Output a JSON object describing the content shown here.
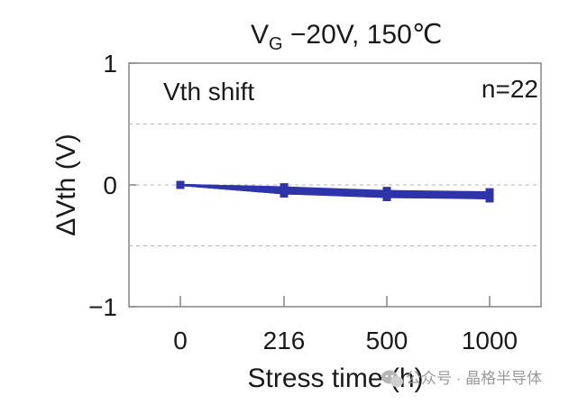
{
  "chart_data": {
    "type": "line",
    "title": {
      "main": "V",
      "subscript": "G",
      "rest": " −20V, 150℃"
    },
    "xlabel": "Stress time (h)",
    "ylabel": "ΔVth (V)",
    "categories": [
      "0",
      "216",
      "500",
      "1000"
    ],
    "ylim": [
      -1,
      1
    ],
    "yticks": [
      {
        "value": 1,
        "label": "1"
      },
      {
        "value": 0,
        "label": "0"
      },
      {
        "value": -1,
        "label": "−1"
      }
    ],
    "grid": true,
    "annotations": {
      "left": "Vth shift",
      "right": "n=22"
    },
    "series_color": "#2e35a8",
    "series": [
      {
        "name": "s1",
        "values": [
          0,
          -0.03,
          -0.06,
          -0.07
        ]
      },
      {
        "name": "s2",
        "values": [
          0,
          -0.04,
          -0.07,
          -0.08
        ]
      },
      {
        "name": "s3",
        "values": [
          0,
          -0.05,
          -0.08,
          -0.09
        ]
      },
      {
        "name": "s4",
        "values": [
          0,
          -0.06,
          -0.09,
          -0.1
        ]
      },
      {
        "name": "s5",
        "values": [
          0,
          -0.02,
          -0.05,
          -0.07
        ]
      },
      {
        "name": "s6",
        "values": [
          0,
          -0.05,
          -0.07,
          -0.08
        ]
      },
      {
        "name": "s7",
        "values": [
          0,
          -0.07,
          -0.09,
          -0.11
        ]
      },
      {
        "name": "s8",
        "values": [
          0,
          -0.04,
          -0.06,
          -0.09
        ]
      },
      {
        "name": "s9",
        "values": [
          0,
          -0.03,
          -0.07,
          -0.08
        ]
      },
      {
        "name": "s10",
        "values": [
          0,
          -0.06,
          -0.08,
          -0.1
        ]
      },
      {
        "name": "s11",
        "values": [
          0,
          -0.05,
          -0.09,
          -0.09
        ]
      },
      {
        "name": "s12",
        "values": [
          0,
          -0.04,
          -0.05,
          -0.06
        ]
      },
      {
        "name": "s13",
        "values": [
          0,
          -0.06,
          -0.07,
          -0.09
        ]
      },
      {
        "name": "s14",
        "values": [
          0,
          -0.07,
          -0.1,
          -0.11
        ]
      },
      {
        "name": "s15",
        "values": [
          0,
          -0.03,
          -0.06,
          -0.08
        ]
      },
      {
        "name": "s16",
        "values": [
          0,
          -0.05,
          -0.08,
          -0.1
        ]
      },
      {
        "name": "s17",
        "values": [
          0,
          -0.04,
          -0.07,
          -0.07
        ]
      },
      {
        "name": "s18",
        "values": [
          0,
          -0.06,
          -0.06,
          -0.08
        ]
      },
      {
        "name": "s19",
        "values": [
          0,
          -0.02,
          -0.06,
          -0.09
        ]
      },
      {
        "name": "s20",
        "values": [
          0,
          -0.05,
          -0.07,
          -0.1
        ]
      },
      {
        "name": "s21",
        "values": [
          0,
          -0.07,
          -0.09,
          -0.09
        ]
      },
      {
        "name": "s22",
        "values": [
          0,
          -0.04,
          -0.08,
          -0.11
        ]
      }
    ]
  },
  "watermark": {
    "icon": "wechat-icon",
    "text": "公众号 · 晶格半导体"
  }
}
